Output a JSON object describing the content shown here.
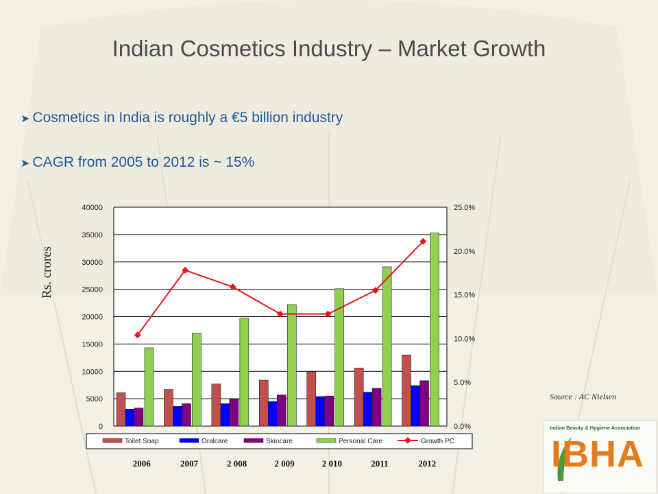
{
  "slide": {
    "title": "Indian Cosmetics Industry – Market Growth",
    "bullets": [
      "Cosmetics in India is roughly a €5 billion industry",
      "CAGR from 2005 to 2012 is ~ 15%"
    ],
    "y_axis_label": "Rs. crores",
    "source": "Source : AC Nielsen",
    "logo": {
      "subtitle": "Indian Beauty & Hygiene Association",
      "text": "IBHA"
    }
  },
  "chart_data": {
    "type": "bar",
    "categories": [
      "2006",
      "2007",
      "2 008",
      "2 009",
      "2 010",
      "2011",
      "2012"
    ],
    "ylim": [
      0,
      40000
    ],
    "y_ticks": [
      "0",
      "5000",
      "10000",
      "15000",
      "20000",
      "25000",
      "30000",
      "35000",
      "40000"
    ],
    "y2lim": [
      0,
      25
    ],
    "y2_ticks": [
      "0.0%",
      "5.0%",
      "10.0%",
      "15.0%",
      "20.0%",
      "25.0%"
    ],
    "grid": true,
    "legend_position": "bottom",
    "series": [
      {
        "name": "Toilet Soap",
        "color": "#c0504d",
        "values": [
          6100,
          6700,
          7700,
          8400,
          9900,
          10600,
          13000
        ]
      },
      {
        "name": "Oralcare",
        "color": "#0000ff",
        "values": [
          3100,
          3600,
          4100,
          4500,
          5400,
          6200,
          7400
        ]
      },
      {
        "name": "Skincare",
        "color": "#800080",
        "values": [
          3300,
          4100,
          4900,
          5700,
          5500,
          6900,
          8300
        ]
      },
      {
        "name": "Personal Care",
        "color": "#8fd14f",
        "values": [
          14300,
          17000,
          19700,
          22200,
          25100,
          29100,
          35300
        ]
      }
    ],
    "line_series": {
      "name": "Growth PC",
      "color": "#e8151b",
      "axis": "right",
      "values": [
        10.4,
        17.8,
        15.9,
        12.8,
        12.8,
        15.5,
        21.1
      ]
    }
  }
}
